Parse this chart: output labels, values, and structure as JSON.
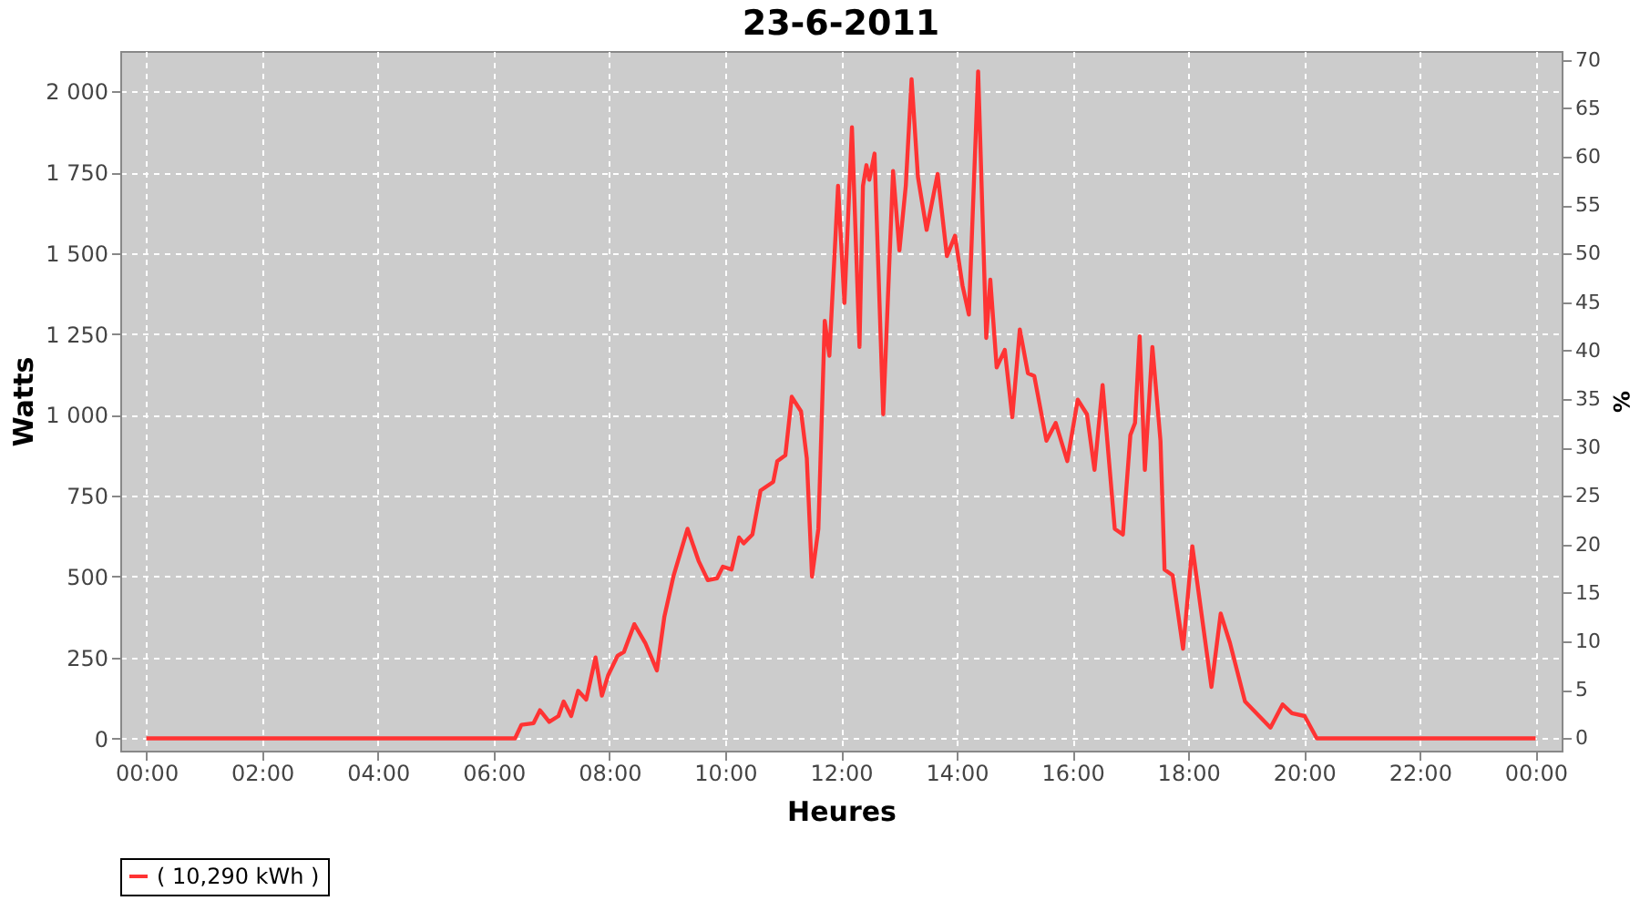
{
  "chart_data": {
    "type": "line",
    "title": "23-6-2011",
    "xlabel": "Heures",
    "ylabel": "Watts",
    "y2label": "%",
    "xlim": [
      -0.45,
      24.45
    ],
    "ylim": [
      -38,
      2125
    ],
    "y2lim": [
      -1.27,
      70.9
    ],
    "xticks": [
      {
        "value": 0,
        "label": "00:00"
      },
      {
        "value": 2,
        "label": "02:00"
      },
      {
        "value": 4,
        "label": "04:00"
      },
      {
        "value": 6,
        "label": "06:00"
      },
      {
        "value": 8,
        "label": "08:00"
      },
      {
        "value": 10,
        "label": "10:00"
      },
      {
        "value": 12,
        "label": "12:00"
      },
      {
        "value": 14,
        "label": "14:00"
      },
      {
        "value": 16,
        "label": "16:00"
      },
      {
        "value": 18,
        "label": "18:00"
      },
      {
        "value": 20,
        "label": "20:00"
      },
      {
        "value": 22,
        "label": "22:00"
      },
      {
        "value": 24,
        "label": "00:00"
      }
    ],
    "yticks": [
      0,
      250,
      500,
      750,
      {
        "value": 1000,
        "label": "1 000"
      },
      {
        "value": 1250,
        "label": "1 250"
      },
      {
        "value": 1500,
        "label": "1 500"
      },
      {
        "value": 1750,
        "label": "1 750"
      },
      {
        "value": 2000,
        "label": "2 000"
      }
    ],
    "y2ticks": [
      0,
      5,
      10,
      15,
      20,
      25,
      30,
      35,
      40,
      45,
      50,
      55,
      60,
      65,
      70
    ],
    "grid": true,
    "legend": "bottom",
    "marker": "none",
    "line_style": "solid",
    "series": [
      {
        "name": "( 10,290 kWh )",
        "color": "#ff3333",
        "x": [
          0,
          6.37,
          6.48,
          6.69,
          6.8,
          6.96,
          7.12,
          7.21,
          7.34,
          7.46,
          7.6,
          7.76,
          7.87,
          7.98,
          8.14,
          8.25,
          8.43,
          8.62,
          8.82,
          8.95,
          9.11,
          9.35,
          9.54,
          9.7,
          9.86,
          9.96,
          10.11,
          10.24,
          10.32,
          10.47,
          10.61,
          10.83,
          10.9,
          11.04,
          11.15,
          11.31,
          11.41,
          11.5,
          11.61,
          11.72,
          11.8,
          11.95,
          12.06,
          12.19,
          12.32,
          12.38,
          12.44,
          12.49,
          12.58,
          12.73,
          12.9,
          13.01,
          13.12,
          13.22,
          13.33,
          13.48,
          13.67,
          13.83,
          13.97,
          14.1,
          14.21,
          14.37,
          14.51,
          14.58,
          14.69,
          14.83,
          14.96,
          15.09,
          15.23,
          15.34,
          15.55,
          15.71,
          15.91,
          16.09,
          16.25,
          16.38,
          16.52,
          16.73,
          16.87,
          17.0,
          17.08,
          17.16,
          17.25,
          17.38,
          17.52,
          17.59,
          17.73,
          17.91,
          18.07,
          18.4,
          18.56,
          18.72,
          18.98,
          19.42,
          19.63,
          19.79,
          20.01,
          20.22,
          24
        ],
        "values": [
          0,
          0,
          42,
          47,
          87,
          51,
          69,
          114,
          69,
          147,
          120,
          250,
          132,
          196,
          255,
          267,
          353,
          295,
          210,
          377,
          504,
          648,
          549,
          489,
          495,
          531,
          522,
          621,
          603,
          630,
          766,
          793,
          857,
          875,
          1056,
          1011,
          866,
          500,
          648,
          1291,
          1183,
          1708,
          1346,
          1889,
          1210,
          1708,
          1772,
          1727,
          1808,
          1002,
          1754,
          1509,
          1708,
          2038,
          1735,
          1572,
          1745,
          1491,
          1554,
          1400,
          1310,
          2062,
          1238,
          1418,
          1147,
          1201,
          993,
          1264,
          1129,
          1120,
          920,
          975,
          857,
          1047,
          1002,
          830,
          1092,
          648,
          630,
          938,
          975,
          1243,
          830,
          1210,
          920,
          522,
          504,
          277,
          594,
          159,
          386,
          295,
          114,
          33,
          105,
          78,
          69,
          0,
          0
        ]
      }
    ]
  }
}
